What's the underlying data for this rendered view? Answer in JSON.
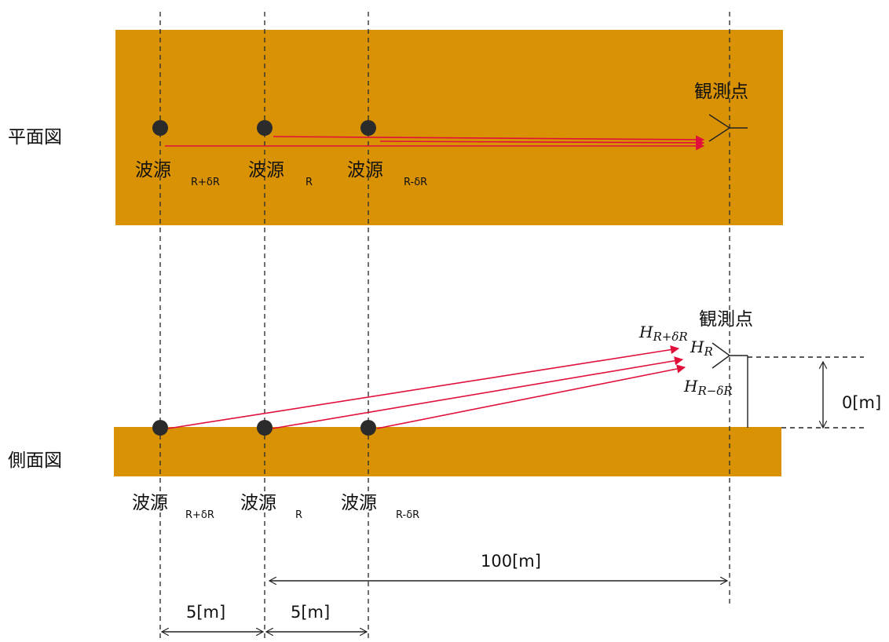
{
  "colors": {
    "band": "#D99204",
    "arrow": "#E0103A",
    "line": "#222222",
    "dot": "#2b2b2b"
  },
  "plan_view": {
    "label": "平面図",
    "observer_label": "観測点",
    "sources": [
      {
        "name": "波源",
        "sub": "R+δR"
      },
      {
        "name": "波源",
        "sub": "R"
      },
      {
        "name": "波源",
        "sub": "R-δR"
      }
    ]
  },
  "side_view": {
    "label": "側面図",
    "observer_label": "観測点",
    "sources": [
      {
        "name": "波源",
        "sub": "R+δR"
      },
      {
        "name": "波源",
        "sub": "R"
      },
      {
        "name": "波源",
        "sub": "R-δR"
      }
    ],
    "heights": [
      {
        "base": "H",
        "sub": "R+δR"
      },
      {
        "base": "H",
        "sub": "R"
      },
      {
        "base": "H",
        "sub": "R−δR"
      }
    ],
    "height_dimension": "0[m]"
  },
  "dimensions": {
    "distance_to_observer": "100[m]",
    "spacing_1": "5[m]",
    "spacing_2": "5[m]"
  }
}
